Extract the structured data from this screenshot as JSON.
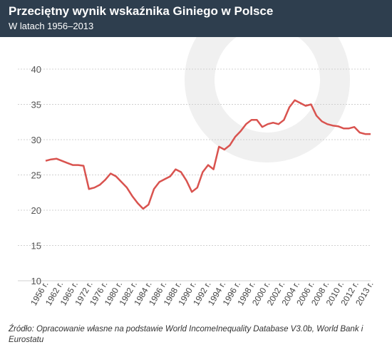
{
  "header": {
    "title": "Przeciętny wynik wskaźnika Giniego w Polsce",
    "subtitle": "W latach 1956–2013"
  },
  "source": "Źródło: Opracowanie własne na podstawie World IncomeInequality Database V3.0b, World Bank i Eurostatu",
  "colors": {
    "header_bg": "#2e3e4e",
    "line": "#d9534f",
    "grid": "#d0d0d0",
    "watermark": "#f0f0f0"
  },
  "chart_data": {
    "type": "line",
    "title": "Przeciętny wynik wskaźnika Giniego w Polsce",
    "subtitle": "W latach 1956–2013",
    "xlabel": "",
    "ylabel": "",
    "ylim": [
      10,
      40
    ],
    "yticks": [
      10,
      15,
      20,
      25,
      30,
      35,
      40
    ],
    "grid": true,
    "xtick_labels": [
      "1956 r.",
      "1962 r.",
      "1965 r.",
      "1972 r.",
      "1976 r.",
      "1980 r.",
      "1982 r.",
      "1984 r.",
      "1986 r.",
      "1988 r.",
      "1990 r.",
      "1992 r.",
      "1994 r.",
      "1996 r.",
      "1998 r.",
      "2000 r.",
      "2002 r.",
      "2004 r.",
      "2006 r.",
      "2008 r.",
      "2010 r.",
      "2012 r.",
      "2013 r."
    ],
    "series": [
      {
        "values": [
          27.0,
          27.2,
          27.3,
          27.0,
          26.7,
          26.4,
          26.4,
          26.3,
          23.0,
          23.2,
          23.6,
          24.3,
          25.2,
          24.8,
          24.0,
          23.2,
          22.0,
          21.0,
          20.2,
          20.8,
          23.0,
          24.0,
          24.4,
          24.8,
          25.8,
          25.4,
          24.2,
          22.6,
          23.2,
          25.4,
          26.4,
          25.8,
          29.0,
          28.6,
          29.2,
          30.4,
          31.2,
          32.2,
          32.8,
          32.8,
          31.8,
          32.2,
          32.4,
          32.2,
          32.8,
          34.6,
          35.6,
          35.2,
          34.8,
          35.0,
          33.4,
          32.6,
          32.2,
          32.0,
          31.9,
          31.6,
          31.6,
          31.8,
          31.0,
          30.8,
          30.8
        ]
      }
    ]
  }
}
